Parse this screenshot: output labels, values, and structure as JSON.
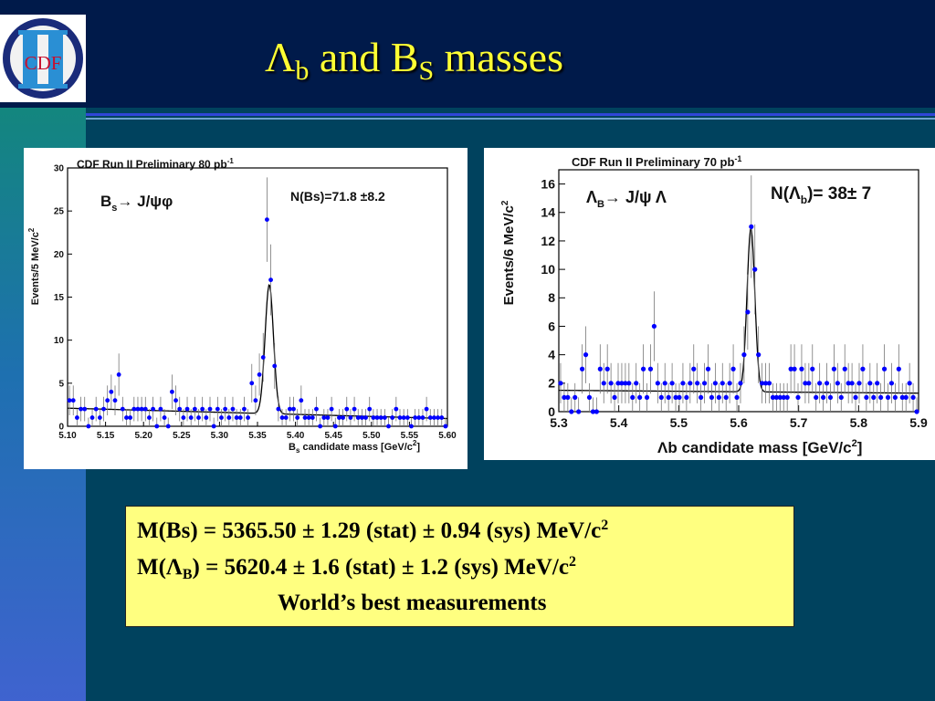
{
  "slide": {
    "title_main_1": "Λ",
    "title_sub_1": "b",
    "title_main_2": " and B",
    "title_sub_2": "S",
    "title_main_3": " masses",
    "logo_text": "CDF",
    "colors": {
      "title": "#ffff33",
      "background": "#00425e",
      "header": "#001a4a",
      "results_box": "#ffff80",
      "data_points": "#0000ff"
    }
  },
  "results": {
    "line1_text": "M(Bs) = 5365.50 ± 1.29 (stat) ± 0.94 (sys) MeV/c",
    "line1_sup": "2",
    "line2_a": "M(Λ",
    "line2_sub": "B",
    "line2_b": ") = 5620.4 ± 1.6 (stat) ± 1.2 (sys) MeV/c",
    "line2_sup": "2",
    "line3": "World’s best measurements"
  },
  "chart_data": [
    {
      "type": "scatter",
      "header": "CDF Run II Preliminary 80 pb",
      "header_sup": "-1",
      "decay_label": "B",
      "decay_label_sub": "s",
      "decay_label_rest": "→  J/ψφ",
      "yield_label": "N(Bs)=71.8 ±8.2",
      "xlabel": "B",
      "xlabel_sub": "s",
      "xlabel_rest": " candidate mass  [GeV/c",
      "xlabel_sup": "2",
      "xlabel_end": "]",
      "ylabel": "Events/5 MeV/c",
      "ylabel_sup": "2",
      "xlim": [
        5.1,
        5.6
      ],
      "ylim": [
        0,
        30
      ],
      "xticks": [
        5.1,
        5.15,
        5.2,
        5.25,
        5.3,
        5.35,
        5.4,
        5.45,
        5.5,
        5.55,
        5.6
      ],
      "xtick_labels": [
        "5.10",
        "5.15",
        "5.20",
        "5.25",
        "5.30",
        "5.35",
        "5.40",
        "5.45",
        "5.50",
        "5.55",
        "5.60"
      ],
      "yticks": [
        0,
        5,
        10,
        15,
        20,
        25,
        30
      ],
      "ytick_labels": [
        "0",
        "5",
        "10",
        "15",
        "20",
        "25",
        "30"
      ],
      "fit": {
        "peak": 5.3655,
        "sigma": 0.0055,
        "amplitude": 15,
        "bkg_start": 2.1,
        "bkg_end": 0.9
      },
      "series": [
        {
          "points": [
            [
              5.1025,
              3
            ],
            [
              5.1075,
              3
            ],
            [
              5.1125,
              1
            ],
            [
              5.1175,
              2
            ],
            [
              5.1225,
              2
            ],
            [
              5.1275,
              0
            ],
            [
              5.1325,
              1
            ],
            [
              5.1375,
              2
            ],
            [
              5.1425,
              1
            ],
            [
              5.1475,
              2
            ],
            [
              5.1525,
              3
            ],
            [
              5.1575,
              4
            ],
            [
              5.1625,
              3
            ],
            [
              5.1675,
              6
            ],
            [
              5.1725,
              2
            ],
            [
              5.1775,
              1
            ],
            [
              5.1825,
              1
            ],
            [
              5.1875,
              2
            ],
            [
              5.1925,
              2
            ],
            [
              5.1975,
              2
            ],
            [
              5.2025,
              2
            ],
            [
              5.2075,
              1
            ],
            [
              5.2125,
              2
            ],
            [
              5.2175,
              0
            ],
            [
              5.2225,
              2
            ],
            [
              5.2275,
              1
            ],
            [
              5.2325,
              0
            ],
            [
              5.2375,
              4
            ],
            [
              5.2425,
              3
            ],
            [
              5.2475,
              2
            ],
            [
              5.2525,
              1
            ],
            [
              5.2575,
              2
            ],
            [
              5.2625,
              1
            ],
            [
              5.2675,
              2
            ],
            [
              5.2725,
              1
            ],
            [
              5.2775,
              2
            ],
            [
              5.2825,
              1
            ],
            [
              5.2875,
              2
            ],
            [
              5.2925,
              0
            ],
            [
              5.2975,
              2
            ],
            [
              5.3025,
              1
            ],
            [
              5.3075,
              2
            ],
            [
              5.3125,
              1
            ],
            [
              5.3175,
              2
            ],
            [
              5.3225,
              1
            ],
            [
              5.3275,
              1
            ],
            [
              5.3325,
              2
            ],
            [
              5.3375,
              1
            ],
            [
              5.3425,
              5
            ],
            [
              5.3475,
              3
            ],
            [
              5.3525,
              6
            ],
            [
              5.3575,
              8
            ],
            [
              5.3625,
              24
            ],
            [
              5.3675,
              17
            ],
            [
              5.3725,
              7
            ],
            [
              5.3775,
              2
            ],
            [
              5.3825,
              1
            ],
            [
              5.3875,
              1
            ],
            [
              5.3925,
              2
            ],
            [
              5.3975,
              2
            ],
            [
              5.4025,
              1
            ],
            [
              5.4075,
              3
            ],
            [
              5.4125,
              1
            ],
            [
              5.4175,
              1
            ],
            [
              5.4225,
              1
            ],
            [
              5.4275,
              2
            ],
            [
              5.4325,
              0
            ],
            [
              5.4375,
              1
            ],
            [
              5.4425,
              1
            ],
            [
              5.4475,
              2
            ],
            [
              5.4525,
              0
            ],
            [
              5.4575,
              1
            ],
            [
              5.4625,
              1
            ],
            [
              5.4675,
              2
            ],
            [
              5.4725,
              1
            ],
            [
              5.4775,
              2
            ],
            [
              5.4825,
              1
            ],
            [
              5.4875,
              1
            ],
            [
              5.4925,
              1
            ],
            [
              5.4975,
              2
            ],
            [
              5.5025,
              1
            ],
            [
              5.5075,
              1
            ],
            [
              5.5125,
              1
            ],
            [
              5.5175,
              1
            ],
            [
              5.5225,
              0
            ],
            [
              5.5275,
              1
            ],
            [
              5.5325,
              2
            ],
            [
              5.5375,
              1
            ],
            [
              5.5425,
              1
            ],
            [
              5.5475,
              1
            ],
            [
              5.5525,
              0
            ],
            [
              5.5575,
              1
            ],
            [
              5.5625,
              1
            ],
            [
              5.5675,
              1
            ],
            [
              5.5725,
              2
            ],
            [
              5.5775,
              1
            ],
            [
              5.5825,
              1
            ],
            [
              5.5875,
              1
            ],
            [
              5.5925,
              1
            ],
            [
              5.5975,
              0
            ]
          ]
        }
      ]
    },
    {
      "type": "scatter",
      "header": "CDF Run II Preliminary 70 pb",
      "header_sup": "-1",
      "decay_label": "Λ",
      "decay_label_sub": "B",
      "decay_label_rest": "→  J/ψ  Λ",
      "yield_label": "N(Λ",
      "yield_label_sub": "b",
      "yield_label_rest": ")= 38±  7",
      "xlabel": "Λb  candidate mass [GeV/c",
      "xlabel_sup": "2",
      "xlabel_end": "]",
      "ylabel": "Events/6 MeV/c",
      "ylabel_sup": "2",
      "xlim": [
        5.3,
        5.9
      ],
      "ylim": [
        0,
        17
      ],
      "xticks": [
        5.3,
        5.4,
        5.5,
        5.6,
        5.7,
        5.8,
        5.9
      ],
      "xtick_labels": [
        "5.3",
        "5.4",
        "5.5",
        "5.6",
        "5.7",
        "5.8",
        "5.9"
      ],
      "yticks": [
        0,
        2,
        4,
        6,
        8,
        10,
        12,
        14,
        16
      ],
      "ytick_labels": [
        "0",
        "2",
        "4",
        "6",
        "8",
        "10",
        "12",
        "14",
        "16"
      ],
      "fit": {
        "peak": 5.6204,
        "sigma": 0.0065,
        "amplitude": 11.5,
        "bkg_start": 1.5,
        "bkg_end": 1.3
      },
      "series": [
        {
          "points": [
            [
              5.303,
              2
            ],
            [
              5.309,
              1
            ],
            [
              5.315,
              1
            ],
            [
              5.321,
              0
            ],
            [
              5.327,
              1
            ],
            [
              5.333,
              0
            ],
            [
              5.339,
              3
            ],
            [
              5.345,
              4
            ],
            [
              5.351,
              1
            ],
            [
              5.357,
              0
            ],
            [
              5.363,
              0
            ],
            [
              5.369,
              3
            ],
            [
              5.375,
              2
            ],
            [
              5.381,
              3
            ],
            [
              5.387,
              2
            ],
            [
              5.393,
              1
            ],
            [
              5.399,
              2
            ],
            [
              5.405,
              2
            ],
            [
              5.411,
              2
            ],
            [
              5.417,
              2
            ],
            [
              5.423,
              1
            ],
            [
              5.429,
              2
            ],
            [
              5.435,
              1
            ],
            [
              5.441,
              3
            ],
            [
              5.447,
              1
            ],
            [
              5.453,
              3
            ],
            [
              5.459,
              6
            ],
            [
              5.465,
              2
            ],
            [
              5.471,
              1
            ],
            [
              5.477,
              2
            ],
            [
              5.483,
              1
            ],
            [
              5.489,
              2
            ],
            [
              5.495,
              1
            ],
            [
              5.501,
              1
            ],
            [
              5.507,
              2
            ],
            [
              5.513,
              1
            ],
            [
              5.519,
              2
            ],
            [
              5.525,
              3
            ],
            [
              5.531,
              2
            ],
            [
              5.537,
              1
            ],
            [
              5.543,
              2
            ],
            [
              5.549,
              3
            ],
            [
              5.555,
              1
            ],
            [
              5.561,
              2
            ],
            [
              5.567,
              1
            ],
            [
              5.573,
              2
            ],
            [
              5.579,
              1
            ],
            [
              5.585,
              2
            ],
            [
              5.591,
              3
            ],
            [
              5.597,
              1
            ],
            [
              5.603,
              2
            ],
            [
              5.609,
              4
            ],
            [
              5.615,
              7
            ],
            [
              5.621,
              13
            ],
            [
              5.627,
              10
            ],
            [
              5.633,
              4
            ],
            [
              5.639,
              2
            ],
            [
              5.645,
              2
            ],
            [
              5.651,
              2
            ],
            [
              5.657,
              1
            ],
            [
              5.663,
              1
            ],
            [
              5.669,
              1
            ],
            [
              5.675,
              1
            ],
            [
              5.681,
              1
            ],
            [
              5.687,
              3
            ],
            [
              5.693,
              3
            ],
            [
              5.699,
              1
            ],
            [
              5.705,
              3
            ],
            [
              5.711,
              2
            ],
            [
              5.717,
              2
            ],
            [
              5.723,
              3
            ],
            [
              5.729,
              1
            ],
            [
              5.735,
              2
            ],
            [
              5.741,
              1
            ],
            [
              5.747,
              2
            ],
            [
              5.753,
              1
            ],
            [
              5.759,
              3
            ],
            [
              5.765,
              2
            ],
            [
              5.771,
              1
            ],
            [
              5.777,
              3
            ],
            [
              5.783,
              2
            ],
            [
              5.789,
              2
            ],
            [
              5.795,
              1
            ],
            [
              5.801,
              2
            ],
            [
              5.807,
              3
            ],
            [
              5.813,
              1
            ],
            [
              5.819,
              2
            ],
            [
              5.825,
              1
            ],
            [
              5.831,
              2
            ],
            [
              5.837,
              1
            ],
            [
              5.843,
              3
            ],
            [
              5.849,
              1
            ],
            [
              5.855,
              2
            ],
            [
              5.861,
              1
            ],
            [
              5.867,
              3
            ],
            [
              5.873,
              1
            ],
            [
              5.879,
              1
            ],
            [
              5.885,
              2
            ],
            [
              5.891,
              1
            ],
            [
              5.897,
              0
            ]
          ]
        }
      ]
    }
  ]
}
